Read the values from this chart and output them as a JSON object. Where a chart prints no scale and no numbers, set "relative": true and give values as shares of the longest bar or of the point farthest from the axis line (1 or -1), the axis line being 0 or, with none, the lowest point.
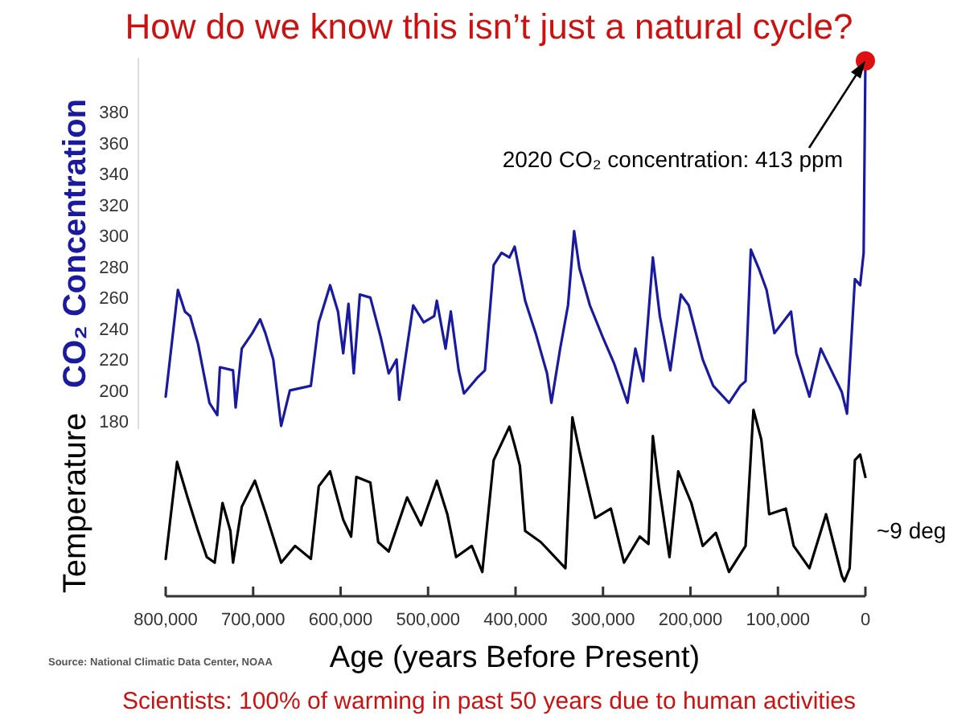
{
  "chart_data": [
    {
      "type": "line",
      "title": "How do we know this isn’t just a natural cycle?",
      "ylabel": "CO₂ Concentration",
      "xlim": [
        800000,
        0
      ],
      "ylim": [
        175,
        415
      ],
      "yticks": [
        180,
        200,
        220,
        240,
        260,
        280,
        300,
        320,
        340,
        360,
        380
      ],
      "tick_labels": "y",
      "annotations": [
        {
          "text": "2020 CO₂ concentration: 413  ppm",
          "x": 0,
          "y": 413
        }
      ],
      "series": [
        {
          "color": "#1a1aa0",
          "x": [
            800000,
            786000,
            778000,
            772000,
            763000,
            750000,
            741000,
            738000,
            723000,
            720000,
            713000,
            701000,
            692000,
            686000,
            677000,
            668000,
            658000,
            634000,
            625000,
            612000,
            603000,
            597000,
            591000,
            585000,
            578000,
            566000,
            554000,
            545000,
            536000,
            533000,
            517000,
            505000,
            493000,
            490000,
            480000,
            474000,
            465000,
            459000,
            444000,
            435000,
            425000,
            416000,
            407000,
            401000,
            389000,
            377000,
            364000,
            359000,
            349000,
            340000,
            333000,
            327000,
            315000,
            300000,
            287000,
            272000,
            263000,
            254000,
            243000,
            235000,
            223000,
            211000,
            202000,
            186000,
            174000,
            156000,
            143000,
            137000,
            131000,
            122000,
            113000,
            104000,
            85000,
            79000,
            64000,
            51000,
            39000,
            27000,
            21000,
            12000,
            6000,
            2000,
            0
          ],
          "values": [
            196,
            265,
            251,
            248,
            230,
            192,
            184,
            215,
            213,
            189,
            227,
            237,
            246,
            237,
            220,
            177,
            200,
            203,
            244,
            268,
            251,
            224,
            256,
            211,
            262,
            260,
            234,
            211,
            220,
            194,
            255,
            244,
            248,
            258,
            227,
            251,
            213,
            198,
            208,
            213,
            281,
            289,
            286,
            293,
            258,
            237,
            211,
            192,
            227,
            255,
            303,
            279,
            255,
            234,
            217,
            192,
            227,
            206,
            286,
            248,
            213,
            262,
            255,
            220,
            203,
            192,
            203,
            206,
            291,
            279,
            265,
            237,
            251,
            224,
            196,
            227,
            213,
            199,
            185,
            272,
            268,
            289,
            413
          ]
        },
        {
          "type": "scatter",
          "color": "#dd1111",
          "marker": "circle",
          "x": [
            0
          ],
          "values": [
            413
          ]
        }
      ]
    },
    {
      "type": "line",
      "ylabel": "Temperature",
      "xlabel": "Age (years Before Present)",
      "relative": true,
      "xlim": [
        800000,
        0
      ],
      "xticks": [
        {
          "value": 800000,
          "label": "800,000"
        },
        {
          "value": 700000,
          "label": "700,000"
        },
        {
          "value": 600000,
          "label": "600,000"
        },
        {
          "value": 500000,
          "label": "500,000"
        },
        {
          "value": 400000,
          "label": "400,000"
        },
        {
          "value": 300000,
          "label": "300,000"
        },
        {
          "value": 200000,
          "label": "200,000"
        },
        {
          "value": 100000,
          "label": "100,000"
        },
        0
      ],
      "tick_labels": "x",
      "annotations": [
        "~9 deg",
        "Source: National Climatic Data Center, NOAA",
        "Scientists: 100% of warming in past 50 years due to human activities"
      ],
      "series": [
        {
          "color": "#000000",
          "x": [
            800000,
            787000,
            775000,
            763000,
            753000,
            744000,
            735000,
            726000,
            723000,
            713000,
            698000,
            686000,
            668000,
            652000,
            634000,
            625000,
            612000,
            597000,
            588000,
            582000,
            566000,
            557000,
            545000,
            524000,
            508000,
            490000,
            478000,
            468000,
            450000,
            438000,
            425000,
            407000,
            401000,
            395000,
            389000,
            371000,
            343000,
            335000,
            327000,
            309000,
            291000,
            276000,
            258000,
            248000,
            243000,
            236000,
            224000,
            214000,
            199000,
            186000,
            171000,
            156000,
            137000,
            128000,
            119000,
            110000,
            91000,
            82000,
            64000,
            45000,
            27000,
            24000,
            18000,
            12000,
            6000,
            0
          ],
          "values": [
            0.2,
            0.72,
            0.53,
            0.35,
            0.21,
            0.18,
            0.5,
            0.35,
            0.18,
            0.48,
            0.62,
            0.45,
            0.18,
            0.27,
            0.2,
            0.59,
            0.67,
            0.41,
            0.32,
            0.64,
            0.61,
            0.29,
            0.24,
            0.53,
            0.38,
            0.62,
            0.44,
            0.21,
            0.27,
            0.13,
            0.73,
            0.91,
            0.81,
            0.7,
            0.35,
            0.29,
            0.15,
            0.96,
            0.78,
            0.42,
            0.47,
            0.18,
            0.32,
            0.28,
            0.86,
            0.59,
            0.21,
            0.67,
            0.5,
            0.27,
            0.34,
            0.13,
            0.27,
            1,
            0.84,
            0.44,
            0.47,
            0.27,
            0.15,
            0.44,
            0.11,
            0.08,
            0.15,
            0.73,
            0.76,
            0.64
          ]
        }
      ]
    }
  ]
}
